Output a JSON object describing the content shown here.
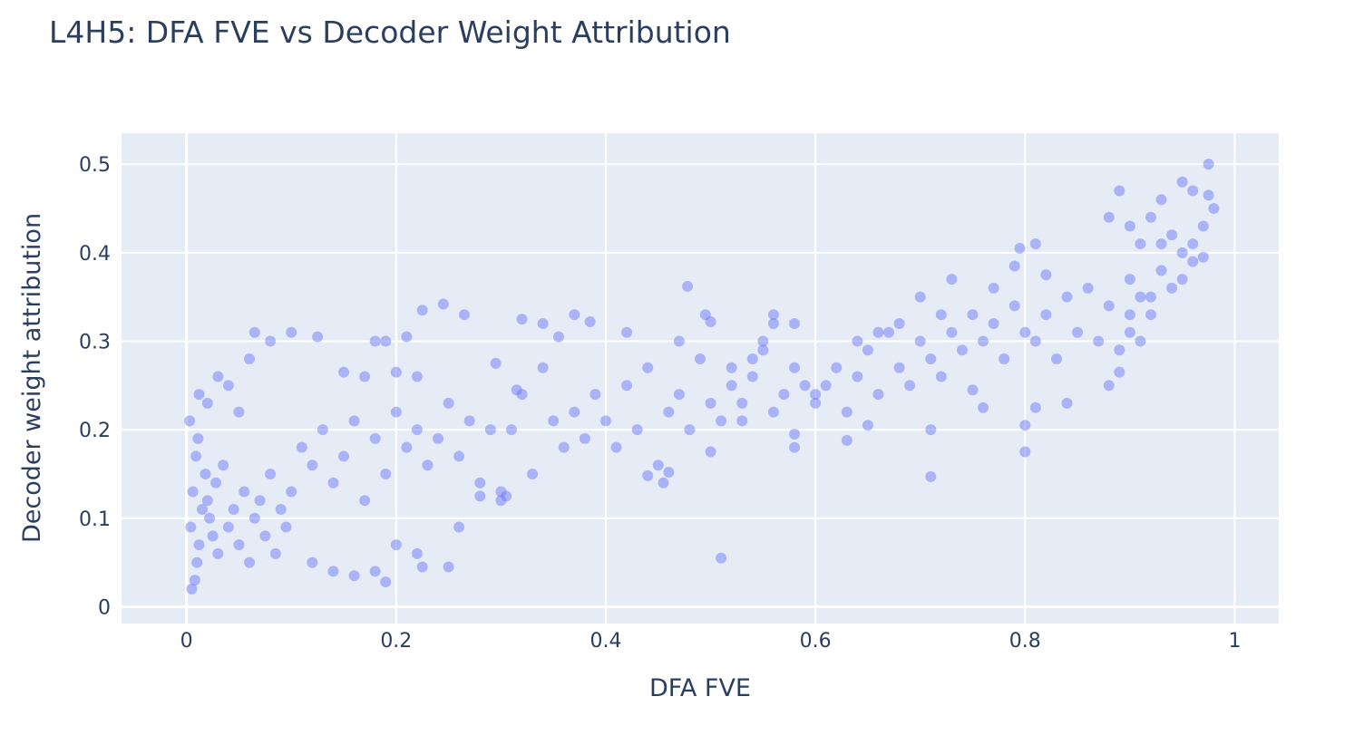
{
  "chart_data": {
    "type": "scatter",
    "title": "L4H5: DFA FVE vs Decoder Weight Attribution",
    "xlabel": "DFA FVE",
    "ylabel": "Decoder weight attribution",
    "xlim": [
      -0.062,
      1.042
    ],
    "ylim": [
      -0.019,
      0.535
    ],
    "xticks": [
      0,
      0.2,
      0.4,
      0.6,
      0.8,
      1
    ],
    "xtick_labels": [
      "0",
      "0.2",
      "0.4",
      "0.6",
      "0.8",
      "1"
    ],
    "yticks": [
      0,
      0.1,
      0.2,
      0.3,
      0.4,
      0.5
    ],
    "ytick_labels": [
      "0",
      "0.1",
      "0.2",
      "0.3",
      "0.4",
      "0.5"
    ],
    "grid": true,
    "legend": "none",
    "marker_color": "#636efa",
    "marker_opacity": 0.45,
    "background_color": "#e5ecf6",
    "points": [
      [
        0.005,
        0.02
      ],
      [
        0.008,
        0.03
      ],
      [
        0.01,
        0.05
      ],
      [
        0.012,
        0.07
      ],
      [
        0.004,
        0.09
      ],
      [
        0.015,
        0.11
      ],
      [
        0.006,
        0.13
      ],
      [
        0.018,
        0.15
      ],
      [
        0.009,
        0.17
      ],
      [
        0.011,
        0.19
      ],
      [
        0.003,
        0.21
      ],
      [
        0.02,
        0.12
      ],
      [
        0.025,
        0.08
      ],
      [
        0.03,
        0.06
      ],
      [
        0.022,
        0.1
      ],
      [
        0.028,
        0.14
      ],
      [
        0.035,
        0.16
      ],
      [
        0.04,
        0.09
      ],
      [
        0.045,
        0.11
      ],
      [
        0.05,
        0.07
      ],
      [
        0.055,
        0.13
      ],
      [
        0.06,
        0.05
      ],
      [
        0.065,
        0.1
      ],
      [
        0.07,
        0.12
      ],
      [
        0.075,
        0.08
      ],
      [
        0.08,
        0.15
      ],
      [
        0.085,
        0.06
      ],
      [
        0.09,
        0.11
      ],
      [
        0.095,
        0.09
      ],
      [
        0.1,
        0.13
      ],
      [
        0.012,
        0.24
      ],
      [
        0.02,
        0.23
      ],
      [
        0.03,
        0.26
      ],
      [
        0.04,
        0.25
      ],
      [
        0.05,
        0.22
      ],
      [
        0.06,
        0.28
      ],
      [
        0.065,
        0.31
      ],
      [
        0.08,
        0.3
      ],
      [
        0.1,
        0.31
      ],
      [
        0.125,
        0.305
      ],
      [
        0.11,
        0.18
      ],
      [
        0.12,
        0.16
      ],
      [
        0.13,
        0.2
      ],
      [
        0.14,
        0.14
      ],
      [
        0.15,
        0.17
      ],
      [
        0.16,
        0.21
      ],
      [
        0.17,
        0.12
      ],
      [
        0.18,
        0.19
      ],
      [
        0.19,
        0.15
      ],
      [
        0.2,
        0.22
      ],
      [
        0.21,
        0.18
      ],
      [
        0.22,
        0.2
      ],
      [
        0.23,
        0.16
      ],
      [
        0.24,
        0.19
      ],
      [
        0.25,
        0.23
      ],
      [
        0.26,
        0.17
      ],
      [
        0.27,
        0.21
      ],
      [
        0.28,
        0.14
      ],
      [
        0.29,
        0.2
      ],
      [
        0.3,
        0.12
      ],
      [
        0.12,
        0.05
      ],
      [
        0.14,
        0.04
      ],
      [
        0.16,
        0.035
      ],
      [
        0.18,
        0.04
      ],
      [
        0.19,
        0.028
      ],
      [
        0.2,
        0.07
      ],
      [
        0.22,
        0.06
      ],
      [
        0.225,
        0.045
      ],
      [
        0.25,
        0.045
      ],
      [
        0.26,
        0.09
      ],
      [
        0.18,
        0.3
      ],
      [
        0.19,
        0.3
      ],
      [
        0.21,
        0.305
      ],
      [
        0.225,
        0.335
      ],
      [
        0.245,
        0.342
      ],
      [
        0.265,
        0.33
      ],
      [
        0.2,
        0.265
      ],
      [
        0.22,
        0.26
      ],
      [
        0.17,
        0.26
      ],
      [
        0.15,
        0.265
      ],
      [
        0.31,
        0.2
      ],
      [
        0.32,
        0.24
      ],
      [
        0.33,
        0.15
      ],
      [
        0.34,
        0.27
      ],
      [
        0.35,
        0.21
      ],
      [
        0.36,
        0.18
      ],
      [
        0.37,
        0.22
      ],
      [
        0.38,
        0.19
      ],
      [
        0.39,
        0.24
      ],
      [
        0.4,
        0.21
      ],
      [
        0.32,
        0.325
      ],
      [
        0.34,
        0.32
      ],
      [
        0.355,
        0.305
      ],
      [
        0.37,
        0.33
      ],
      [
        0.385,
        0.322
      ],
      [
        0.3,
        0.13
      ],
      [
        0.305,
        0.125
      ],
      [
        0.28,
        0.125
      ],
      [
        0.295,
        0.275
      ],
      [
        0.315,
        0.245
      ],
      [
        0.41,
        0.18
      ],
      [
        0.42,
        0.25
      ],
      [
        0.43,
        0.2
      ],
      [
        0.44,
        0.27
      ],
      [
        0.45,
        0.16
      ],
      [
        0.46,
        0.22
      ],
      [
        0.47,
        0.24
      ],
      [
        0.48,
        0.2
      ],
      [
        0.49,
        0.28
      ],
      [
        0.5,
        0.23
      ],
      [
        0.42,
        0.31
      ],
      [
        0.478,
        0.362
      ],
      [
        0.495,
        0.33
      ],
      [
        0.5,
        0.322
      ],
      [
        0.455,
        0.14
      ],
      [
        0.46,
        0.152
      ],
      [
        0.44,
        0.148
      ],
      [
        0.51,
        0.055
      ],
      [
        0.5,
        0.175
      ],
      [
        0.47,
        0.3
      ],
      [
        0.51,
        0.21
      ],
      [
        0.52,
        0.25
      ],
      [
        0.53,
        0.23
      ],
      [
        0.54,
        0.26
      ],
      [
        0.55,
        0.29
      ],
      [
        0.56,
        0.22
      ],
      [
        0.57,
        0.24
      ],
      [
        0.58,
        0.27
      ],
      [
        0.59,
        0.25
      ],
      [
        0.6,
        0.23
      ],
      [
        0.56,
        0.33
      ],
      [
        0.58,
        0.32
      ],
      [
        0.56,
        0.32
      ],
      [
        0.55,
        0.3
      ],
      [
        0.58,
        0.18
      ],
      [
        0.58,
        0.195
      ],
      [
        0.53,
        0.21
      ],
      [
        0.52,
        0.27
      ],
      [
        0.54,
        0.28
      ],
      [
        0.6,
        0.24
      ],
      [
        0.61,
        0.25
      ],
      [
        0.62,
        0.27
      ],
      [
        0.63,
        0.22
      ],
      [
        0.64,
        0.26
      ],
      [
        0.65,
        0.29
      ],
      [
        0.66,
        0.24
      ],
      [
        0.67,
        0.31
      ],
      [
        0.68,
        0.27
      ],
      [
        0.69,
        0.25
      ],
      [
        0.7,
        0.3
      ],
      [
        0.64,
        0.3
      ],
      [
        0.66,
        0.31
      ],
      [
        0.68,
        0.32
      ],
      [
        0.7,
        0.35
      ],
      [
        0.72,
        0.33
      ],
      [
        0.73,
        0.37
      ],
      [
        0.71,
        0.2
      ],
      [
        0.71,
        0.147
      ],
      [
        0.63,
        0.188
      ],
      [
        0.65,
        0.205
      ],
      [
        0.71,
        0.28
      ],
      [
        0.72,
        0.26
      ],
      [
        0.73,
        0.31
      ],
      [
        0.74,
        0.29
      ],
      [
        0.75,
        0.33
      ],
      [
        0.76,
        0.3
      ],
      [
        0.77,
        0.32
      ],
      [
        0.78,
        0.28
      ],
      [
        0.79,
        0.34
      ],
      [
        0.8,
        0.31
      ],
      [
        0.77,
        0.36
      ],
      [
        0.79,
        0.385
      ],
      [
        0.795,
        0.405
      ],
      [
        0.81,
        0.41
      ],
      [
        0.8,
        0.175
      ],
      [
        0.8,
        0.205
      ],
      [
        0.81,
        0.225
      ],
      [
        0.82,
        0.375
      ],
      [
        0.75,
        0.245
      ],
      [
        0.76,
        0.225
      ],
      [
        0.81,
        0.3
      ],
      [
        0.82,
        0.33
      ],
      [
        0.83,
        0.28
      ],
      [
        0.84,
        0.35
      ],
      [
        0.85,
        0.31
      ],
      [
        0.86,
        0.36
      ],
      [
        0.87,
        0.3
      ],
      [
        0.88,
        0.34
      ],
      [
        0.89,
        0.29
      ],
      [
        0.9,
        0.37
      ],
      [
        0.84,
        0.23
      ],
      [
        0.88,
        0.25
      ],
      [
        0.89,
        0.265
      ],
      [
        0.9,
        0.31
      ],
      [
        0.91,
        0.35
      ],
      [
        0.92,
        0.33
      ],
      [
        0.93,
        0.38
      ],
      [
        0.94,
        0.36
      ],
      [
        0.95,
        0.4
      ],
      [
        0.96,
        0.39
      ],
      [
        0.88,
        0.44
      ],
      [
        0.89,
        0.47
      ],
      [
        0.9,
        0.43
      ],
      [
        0.91,
        0.41
      ],
      [
        0.92,
        0.44
      ],
      [
        0.93,
        0.46
      ],
      [
        0.94,
        0.42
      ],
      [
        0.95,
        0.48
      ],
      [
        0.96,
        0.47
      ],
      [
        0.97,
        0.43
      ],
      [
        0.975,
        0.465
      ],
      [
        0.98,
        0.45
      ],
      [
        0.975,
        0.5
      ],
      [
        0.97,
        0.395
      ],
      [
        0.96,
        0.41
      ],
      [
        0.95,
        0.37
      ],
      [
        0.93,
        0.41
      ],
      [
        0.91,
        0.3
      ],
      [
        0.92,
        0.35
      ],
      [
        0.9,
        0.33
      ]
    ]
  }
}
